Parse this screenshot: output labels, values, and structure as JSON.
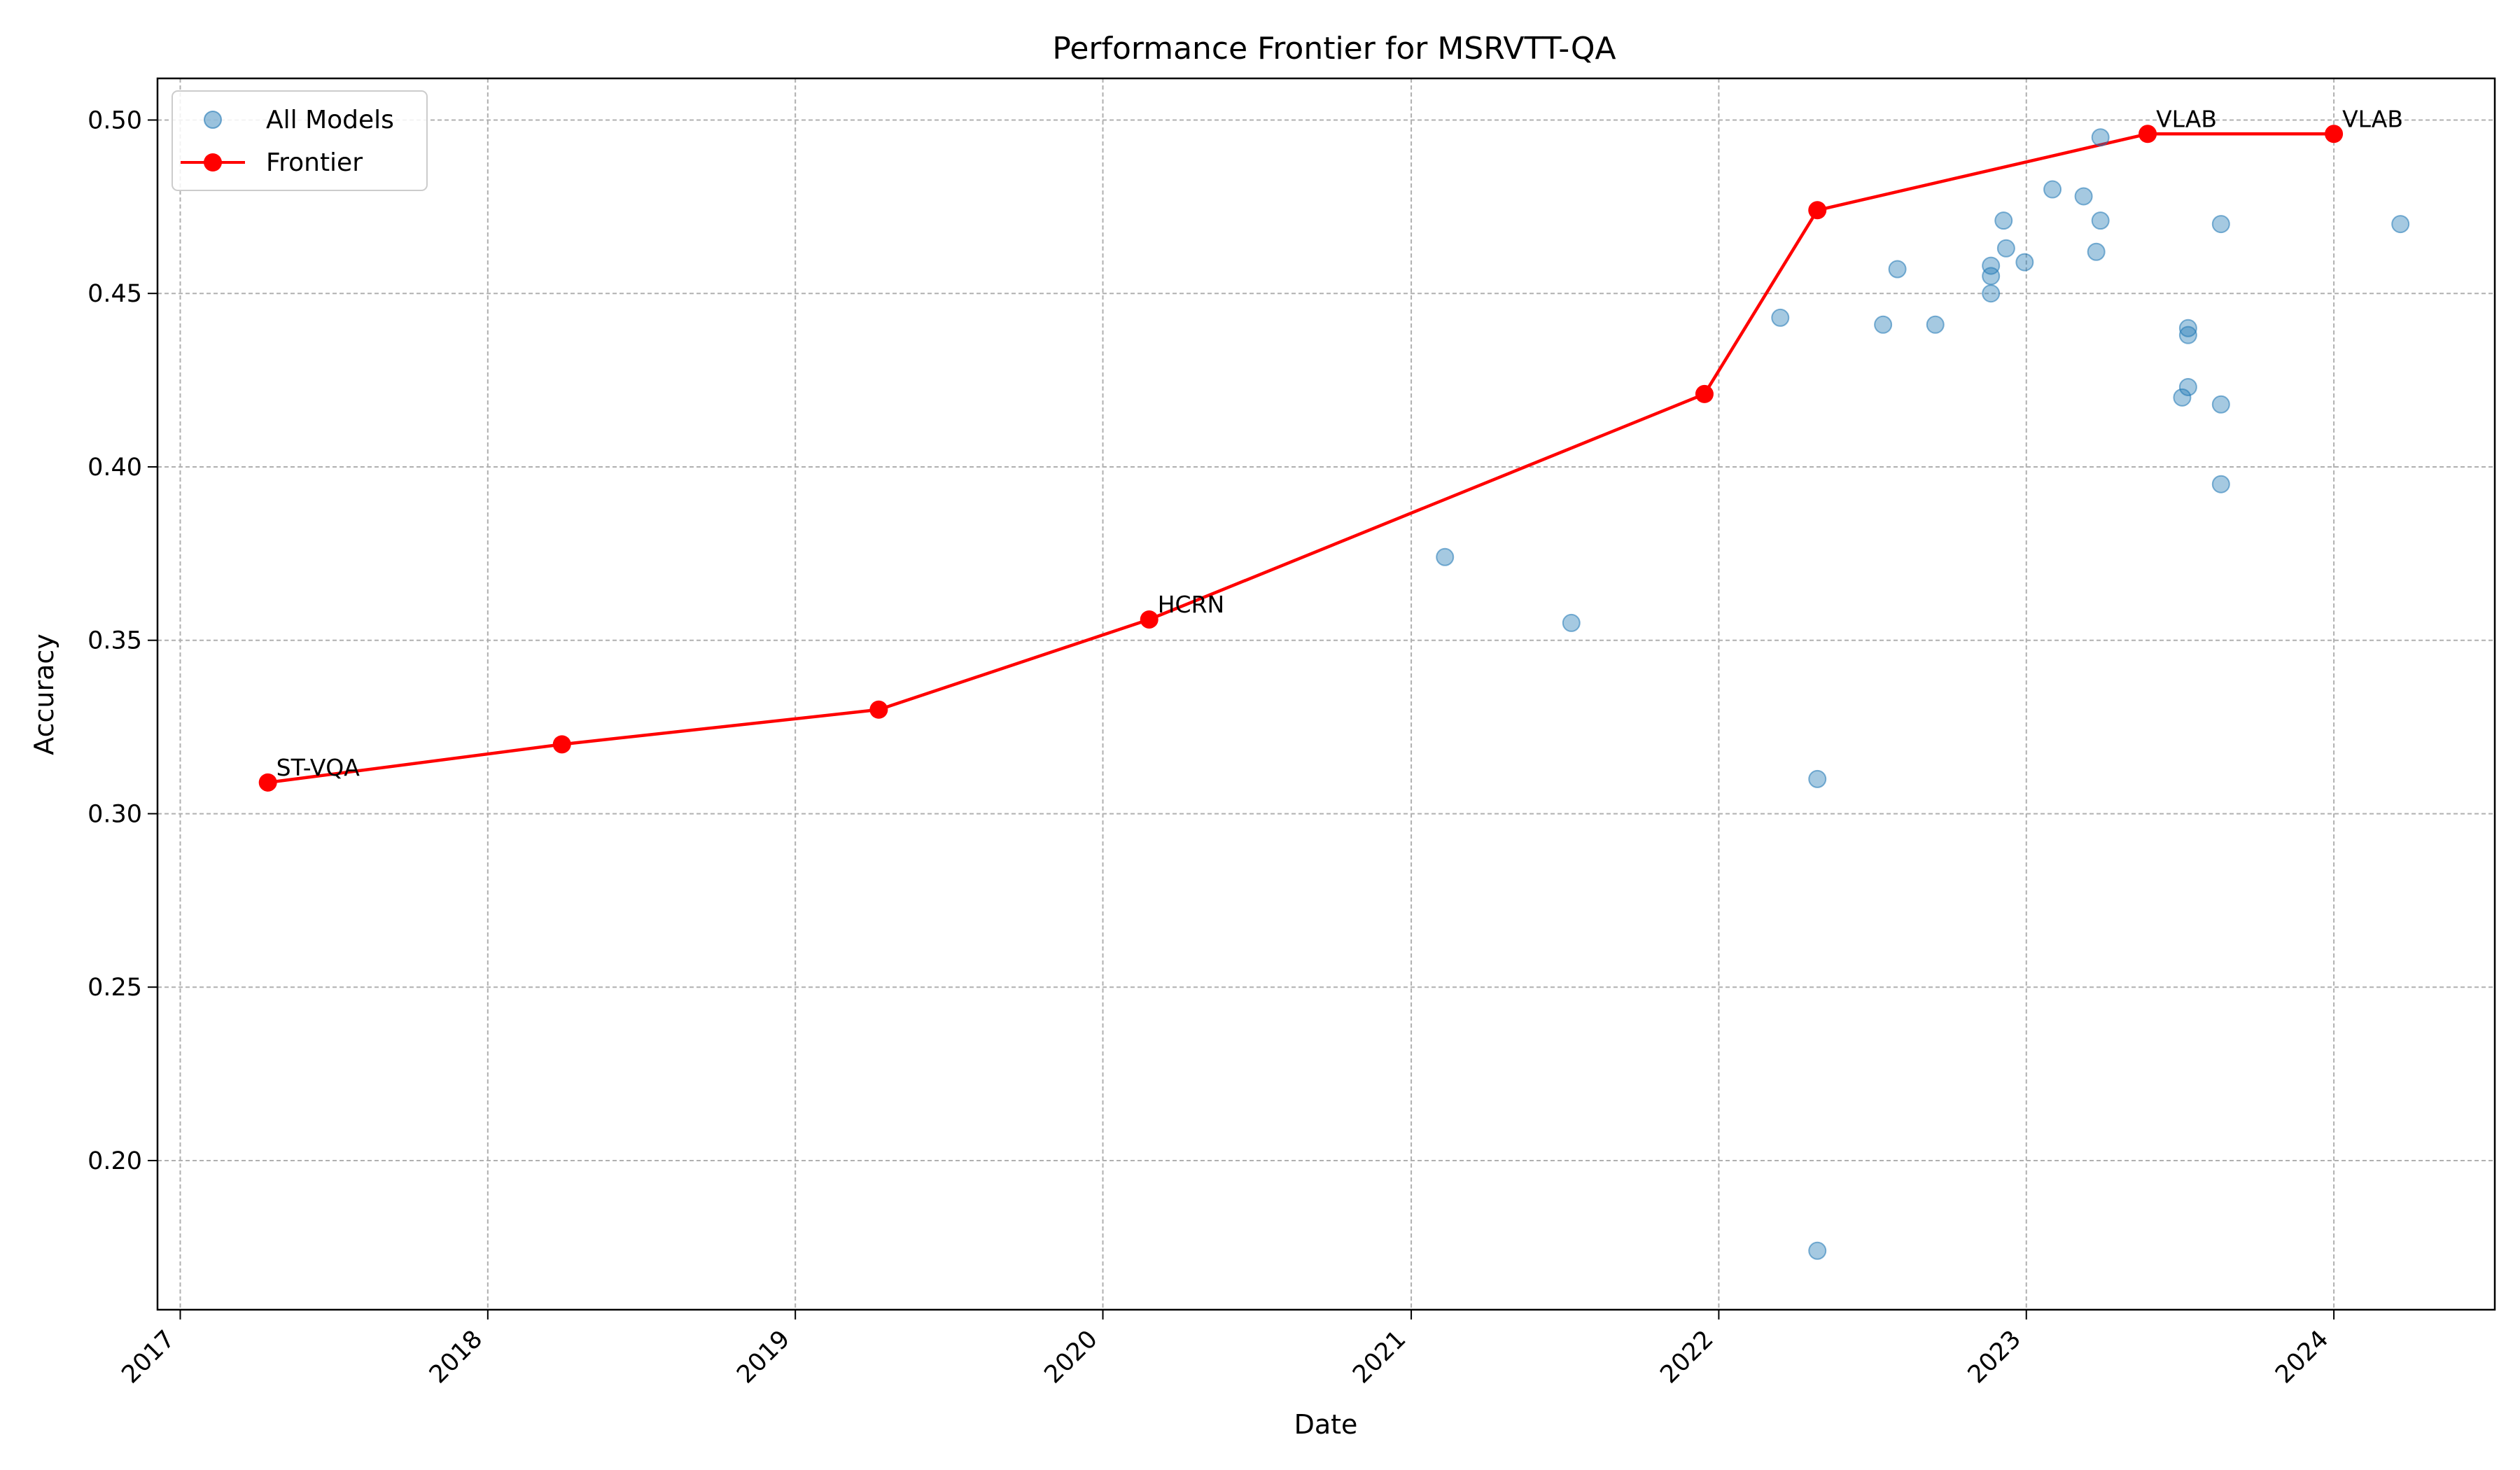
{
  "chart_data": {
    "type": "scatter",
    "title": "Performance Frontier for MSRVTT-QA",
    "xlabel": "Date",
    "ylabel": "Accuracy",
    "xlim": [
      "2016-12-05",
      "2024-07-10"
    ],
    "ylim": [
      0.157,
      0.512
    ],
    "x_ticks": [
      "2017",
      "2018",
      "2019",
      "2020",
      "2021",
      "2022",
      "2023",
      "2024"
    ],
    "y_ticks": [
      "0.20",
      "0.25",
      "0.30",
      "0.35",
      "0.40",
      "0.45",
      "0.50"
    ],
    "grid": true,
    "legend": {
      "position": "top-left",
      "entries": [
        "All Models",
        "Frontier"
      ]
    },
    "colors": {
      "scatter": "#1f77b4",
      "frontier": "#ff0000"
    },
    "series": [
      {
        "name": "All Models",
        "kind": "scatter",
        "points": [
          {
            "x": "2021-02-10",
            "y": 0.374
          },
          {
            "x": "2021-07-10",
            "y": 0.355
          },
          {
            "x": "2022-03-15",
            "y": 0.443
          },
          {
            "x": "2022-04-28",
            "y": 0.31
          },
          {
            "x": "2022-04-28",
            "y": 0.174
          },
          {
            "x": "2022-07-15",
            "y": 0.441
          },
          {
            "x": "2022-08-01",
            "y": 0.457
          },
          {
            "x": "2022-09-15",
            "y": 0.441
          },
          {
            "x": "2022-11-20",
            "y": 0.458
          },
          {
            "x": "2022-11-20",
            "y": 0.455
          },
          {
            "x": "2022-11-20",
            "y": 0.45
          },
          {
            "x": "2022-12-05",
            "y": 0.471
          },
          {
            "x": "2022-12-08",
            "y": 0.463
          },
          {
            "x": "2022-12-30",
            "y": 0.459
          },
          {
            "x": "2023-02-01",
            "y": 0.48
          },
          {
            "x": "2023-03-10",
            "y": 0.478
          },
          {
            "x": "2023-03-25",
            "y": 0.462
          },
          {
            "x": "2023-03-30",
            "y": 0.471
          },
          {
            "x": "2023-03-30",
            "y": 0.495
          },
          {
            "x": "2023-07-05",
            "y": 0.42
          },
          {
            "x": "2023-07-12",
            "y": 0.44
          },
          {
            "x": "2023-07-12",
            "y": 0.438
          },
          {
            "x": "2023-07-12",
            "y": 0.423
          },
          {
            "x": "2023-08-20",
            "y": 0.47
          },
          {
            "x": "2023-08-20",
            "y": 0.418
          },
          {
            "x": "2023-08-20",
            "y": 0.395
          },
          {
            "x": "2024-03-20",
            "y": 0.47
          }
        ]
      },
      {
        "name": "Frontier",
        "kind": "line",
        "points": [
          {
            "x": "2017-04-15",
            "y": 0.309,
            "label": "ST-VQA"
          },
          {
            "x": "2018-03-30",
            "y": 0.32
          },
          {
            "x": "2019-04-10",
            "y": 0.33
          },
          {
            "x": "2020-02-25",
            "y": 0.356,
            "label": "HCRN"
          },
          {
            "x": "2021-12-15",
            "y": 0.421
          },
          {
            "x": "2022-04-28",
            "y": 0.474
          },
          {
            "x": "2023-05-25",
            "y": 0.496,
            "label": "VLAB"
          },
          {
            "x": "2024-01-01",
            "y": 0.496,
            "label": "VLAB"
          }
        ]
      }
    ]
  }
}
